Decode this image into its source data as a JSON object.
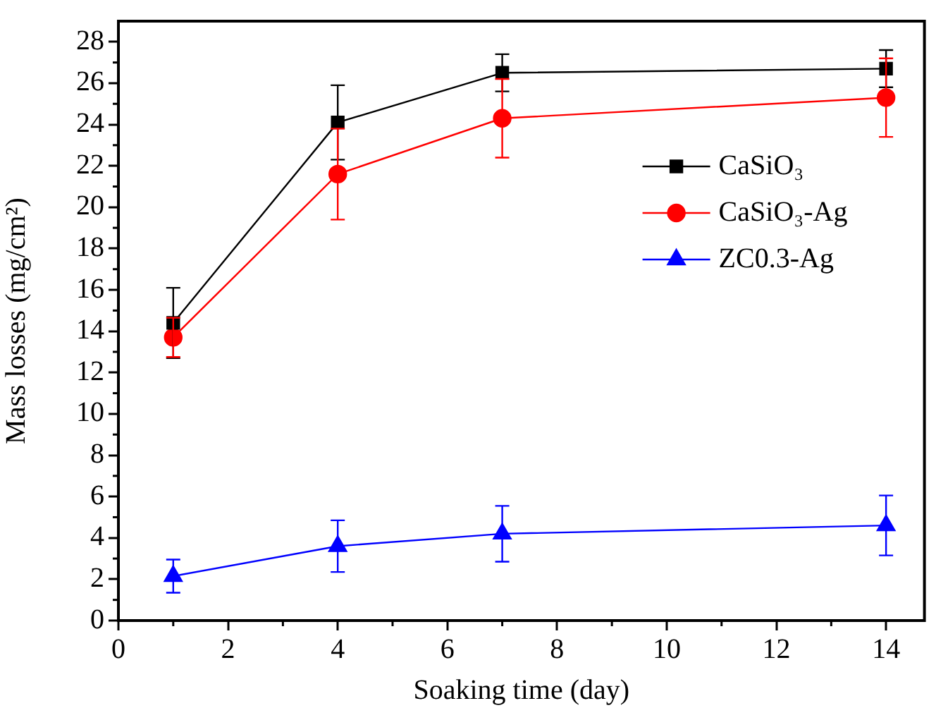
{
  "chart_data": {
    "type": "line",
    "xlabel": "Soaking time (day)",
    "ylabel": "Mass losses (mg/cm²)",
    "x": [
      1,
      4,
      7,
      14
    ],
    "xlim": [
      0,
      14.7
    ],
    "xticks": [
      0,
      2,
      4,
      6,
      8,
      10,
      12,
      14
    ],
    "ylim": [
      0,
      29
    ],
    "yticks": [
      0,
      2,
      4,
      6,
      8,
      10,
      12,
      14,
      16,
      18,
      20,
      22,
      24,
      26,
      28
    ],
    "grid": false,
    "legend": "right",
    "line_style": "solid",
    "series": [
      {
        "name": "CaSiO₃",
        "color": "#000000",
        "marker": "square",
        "values": [
          14.4,
          24.1,
          26.5,
          26.7
        ],
        "errors": [
          1.7,
          1.8,
          0.9,
          0.9
        ]
      },
      {
        "name": "CaSiO₃-Ag",
        "color": "#ff0000",
        "marker": "circle",
        "values": [
          13.7,
          21.6,
          24.3,
          25.3
        ],
        "errors": [
          0.95,
          2.2,
          1.9,
          1.9
        ]
      },
      {
        "name": "ZC0.3-Ag",
        "color": "#0000ff",
        "marker": "triangle",
        "values": [
          2.15,
          3.6,
          4.2,
          4.6
        ],
        "errors": [
          0.8,
          1.25,
          1.35,
          1.45
        ]
      }
    ]
  }
}
